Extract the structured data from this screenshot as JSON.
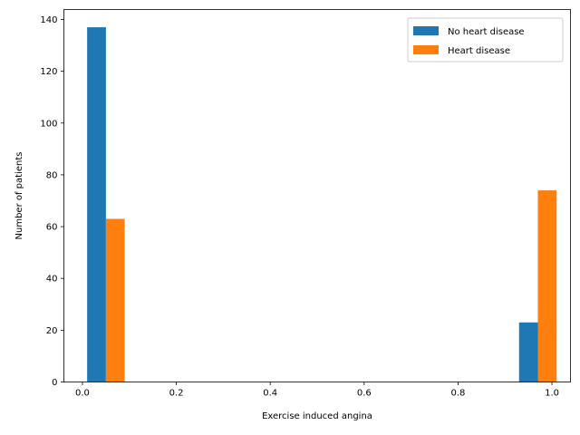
{
  "chart_data": {
    "type": "bar",
    "xlabel": "Exercise induced angina",
    "ylabel": "Number of patients",
    "xlim": [
      -0.0395,
      1.0395
    ],
    "ylim": [
      0,
      143.85
    ],
    "x_ticks": [
      0.0,
      0.2,
      0.4,
      0.6,
      0.8,
      1.0
    ],
    "y_ticks": [
      0,
      20,
      40,
      60,
      80,
      100,
      120,
      140
    ],
    "legend_position": "upper-right",
    "series": [
      {
        "name": "No heart disease",
        "color": "#1f77b4",
        "bars": [
          {
            "x_start": 0.01,
            "x_end": 0.05,
            "value": 137
          },
          {
            "x_start": 0.93,
            "x_end": 0.97,
            "value": 23
          }
        ]
      },
      {
        "name": "Heart disease",
        "color": "#ff7f0e",
        "bars": [
          {
            "x_start": 0.05,
            "x_end": 0.09,
            "value": 63
          },
          {
            "x_start": 0.97,
            "x_end": 1.01,
            "value": 74
          }
        ]
      }
    ]
  }
}
